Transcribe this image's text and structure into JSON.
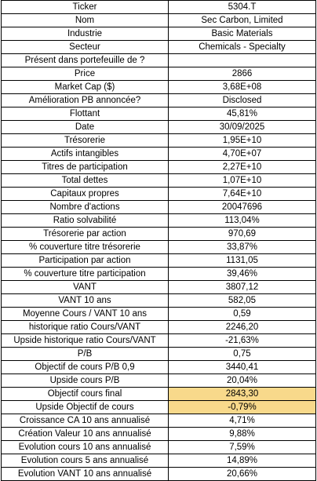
{
  "rows": [
    {
      "label": "Ticker",
      "value": "5304.T"
    },
    {
      "label": "Nom",
      "value": "Sec Carbon, Limited"
    },
    {
      "label": "Industrie",
      "value": "Basic Materials"
    },
    {
      "label": "Secteur",
      "value": "Chemicals - Specialty"
    },
    {
      "label": "Présent dans portefeuille de ?",
      "value": ""
    },
    {
      "label": "Price",
      "value": "2866"
    },
    {
      "label": "Market Cap ($)",
      "value": "3,68E+08"
    },
    {
      "label": "Amélioration PB annoncée?",
      "value": "Disclosed"
    },
    {
      "label": "Flottant",
      "value": "45,81%"
    },
    {
      "label": "Date",
      "value": "30/09/2025"
    },
    {
      "label": "Trésorerie",
      "value": "1,95E+10"
    },
    {
      "label": "Actifs intangibles",
      "value": "4,70E+07"
    },
    {
      "label": "Titres de participation",
      "value": "2,27E+10"
    },
    {
      "label": "Total dettes",
      "value": "1,07E+10"
    },
    {
      "label": "Capitaux propres",
      "value": "7,64E+10"
    },
    {
      "label": "Nombre d'actions",
      "value": "20047696"
    },
    {
      "label": "Ratio solvabilité",
      "value": "113,04%"
    },
    {
      "label": "Trésorerie par action",
      "value": "970,69"
    },
    {
      "label": "% couverture titre trésorerie",
      "value": "33,87%"
    },
    {
      "label": "Participation par action",
      "value": "1131,05"
    },
    {
      "label": "% couverture titre participation",
      "value": "39,46%"
    },
    {
      "label": "VANT",
      "value": "3807,12"
    },
    {
      "label": "VANT 10 ans",
      "value": "582,05"
    },
    {
      "label": "Moyenne Cours / VANT 10 ans",
      "value": "0,59"
    },
    {
      "label": "historique ratio Cours/VANT",
      "value": "2246,20"
    },
    {
      "label": "Upside historique ratio Cours/VANT",
      "value": "-21,63%"
    },
    {
      "label": "P/B",
      "value": "0,75"
    },
    {
      "label": "Objectif de cours P/B 0,9",
      "value": "3440,41"
    },
    {
      "label": "Upside cours P/B",
      "value": "20,04%"
    },
    {
      "label": "Objectif cours final",
      "value": "2843,30"
    },
    {
      "label": "Upside Objectif de cours",
      "value": "-0,79%"
    },
    {
      "label": "Croissance CA 10 ans annualisé",
      "value": "4,71%"
    },
    {
      "label": "Création Valeur 10 ans annualisé",
      "value": "9,88%"
    },
    {
      "label": "Evolution cours 10 ans annualisé",
      "value": "7,59%"
    },
    {
      "label": "Evolution cours 5 ans annualisé",
      "value": "14,89%"
    },
    {
      "label": "Evolution VANT 10 ans annualisé",
      "value": "20,66%"
    }
  ],
  "highlight_color": "#f8d98b",
  "highlighted_rows": [
    29,
    30
  ]
}
